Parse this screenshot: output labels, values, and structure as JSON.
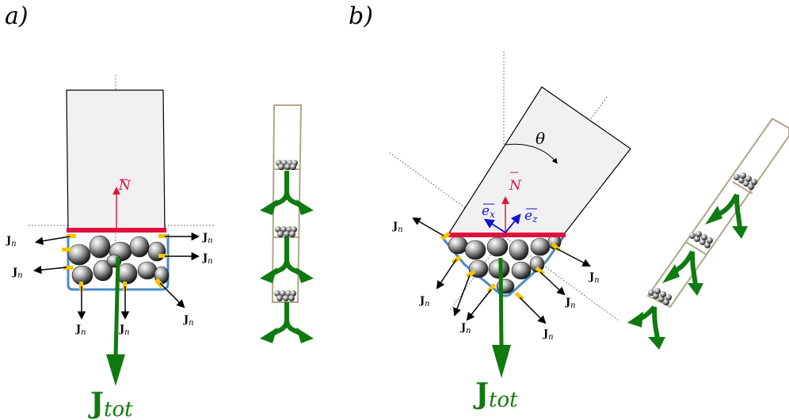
{
  "panel_labels": {
    "a": "a)",
    "b": "b)"
  },
  "labels": {
    "normal_flux_main": "J",
    "normal_flux_sub": "n",
    "total_flux_main": "J",
    "total_flux_sub": "tot",
    "normal_vector": "N",
    "ex_main": "e",
    "ex_sub": "x",
    "ez_main": "e",
    "ez_sub": "z",
    "theta": "θ"
  },
  "colors": {
    "normal_vector": "#e0103c",
    "unit_vectors": "#1010d0",
    "flux_total": "#0f7a0f",
    "contact_plate": "#e0103c",
    "contacts": "#f5c400",
    "boundary": "#4a8ac8",
    "tube_outline": "#b0a58a",
    "container_fill": "#f1f1f1"
  }
}
